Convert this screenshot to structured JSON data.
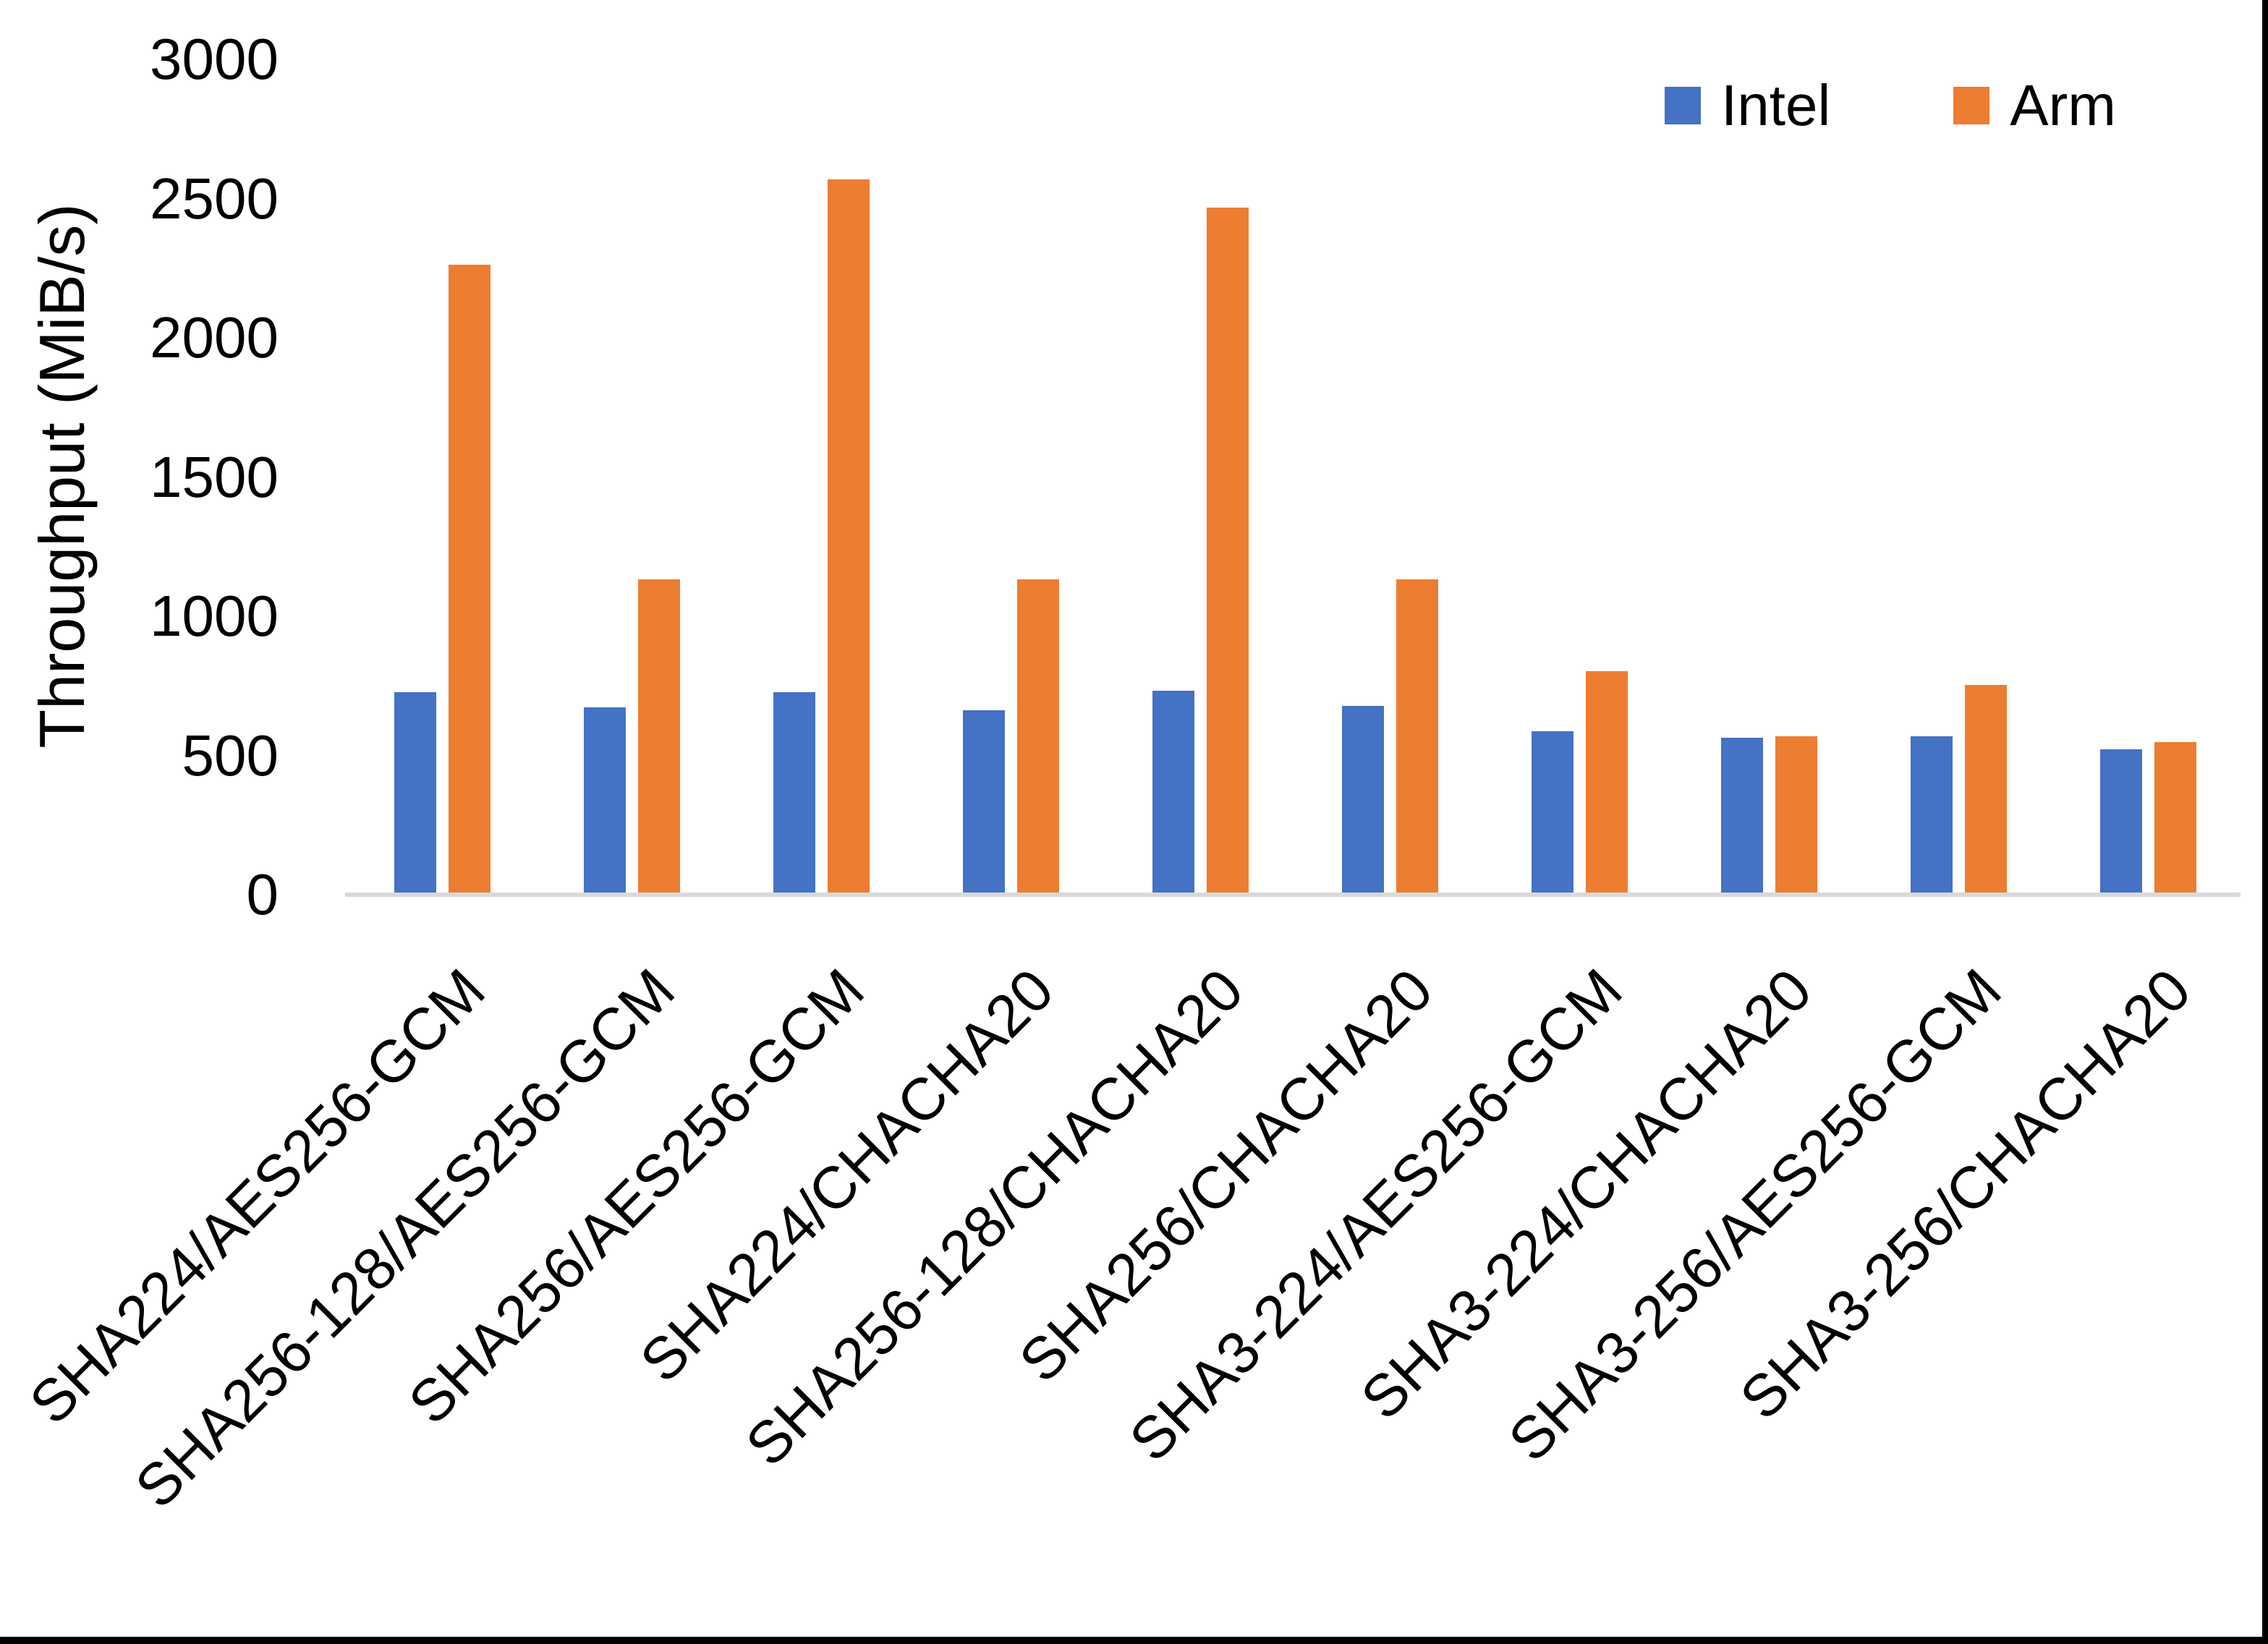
{
  "figure": {
    "background": "#FFFFFF",
    "right_edge_color": "#000000",
    "bottom_edge_color": "#000000"
  },
  "chart_data": {
    "type": "bar",
    "title": "",
    "xlabel": "",
    "ylabel": "Throughput (MiB/s)",
    "ylim": [
      0,
      3000
    ],
    "yticks": [
      "0",
      "500",
      "1000",
      "1500",
      "2000",
      "2500",
      "3000"
    ],
    "grid": false,
    "axis_line_color": "#D9D9D9",
    "text_color": "#000000",
    "legend_position": "top-right",
    "categories": [
      "SHA224/AES256-GCM",
      "SHA256-128/AES256-GCM",
      "SHA256/AES256-GCM",
      "SHA224/CHACHA20",
      "SHA256-128/CHACHA20",
      "SHA256/CHACHA20",
      "SHA3-224/AES256-GCM",
      "SHA3-224/CHACHA20",
      "SHA3-256/AES256-GCM",
      "SHA3-256/CHACHA20"
    ],
    "series": [
      {
        "name": "Intel",
        "color": "#4472C4",
        "values": [
          720,
          665,
          720,
          655,
          725,
          670,
          580,
          555,
          560,
          515
        ]
      },
      {
        "name": "Arm",
        "color": "#ED7D31",
        "values": [
          2255,
          1125,
          2560,
          1125,
          2460,
          1125,
          795,
          560,
          745,
          540
        ]
      }
    ]
  }
}
